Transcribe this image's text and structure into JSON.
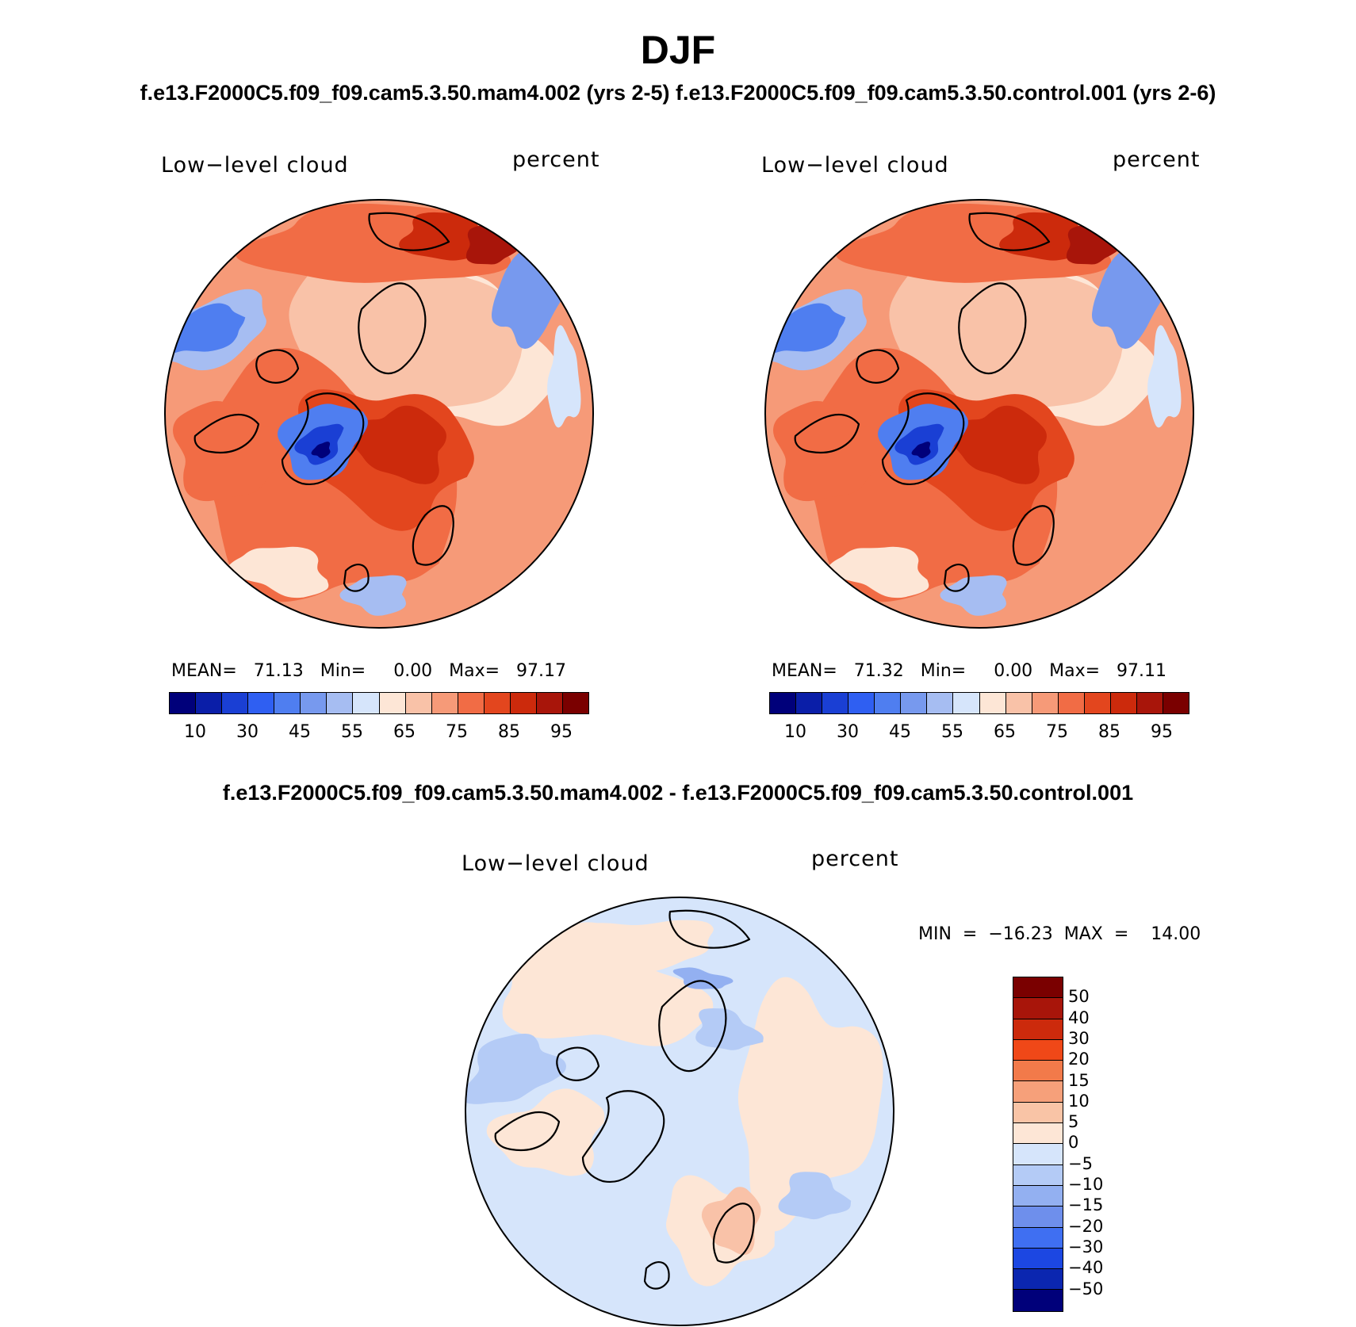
{
  "figure": {
    "title": "DJF",
    "subtitle": "f.e13.F2000C5.f09_f09.cam5.3.50.mam4.002 (yrs 2-5) f.e13.F2000C5.f09_f09.cam5.3.50.control.001 (yrs 2-6)",
    "diff_title": "f.e13.F2000C5.f09_f09.cam5.3.50.mam4.002 - f.e13.F2000C5.f09_f09.cam5.3.50.control.001"
  },
  "panels": [
    {
      "variable": "Low−level cloud",
      "units": "percent",
      "stats": "MEAN=   71.13   Min=     0.00   Max=   97.17"
    },
    {
      "variable": "Low−level cloud",
      "units": "percent",
      "stats": "MEAN=   71.32   Min=     0.00   Max=   97.11"
    },
    {
      "variable": "Low−level cloud",
      "units": "percent",
      "stats": "MIN  =  −16.23  MAX  =    14.00"
    }
  ],
  "colorbar_abs": {
    "colors": [
      "#00007a",
      "#0a1ea8",
      "#1a3fd4",
      "#2f5ff2",
      "#4f7ef0",
      "#7799ee",
      "#a6bdf2",
      "#d6e5fb",
      "#fde6d6",
      "#f9c2a8",
      "#f69a78",
      "#f16c45",
      "#e3461e",
      "#cc2a0c",
      "#a8150a",
      "#7a0000"
    ],
    "tick_labels": [
      "10",
      "30",
      "45",
      "55",
      "65",
      "75",
      "85",
      "95"
    ]
  },
  "colorbar_diff": {
    "colors": [
      "#7a0000",
      "#a8150a",
      "#cc2a0c",
      "#f04818",
      "#f27a4a",
      "#f6a07a",
      "#f9c4a6",
      "#fde6d6",
      "#d6e5fb",
      "#b4cbf6",
      "#93b0f1",
      "#6e8fec",
      "#3f6ff2",
      "#1c47e2",
      "#0b26b0",
      "#00007a"
    ],
    "tick_labels": [
      "50",
      "40",
      "30",
      "20",
      "15",
      "10",
      "5",
      "0",
      "−5",
      "−10",
      "−15",
      "−20",
      "−30",
      "−40",
      "−50"
    ]
  }
}
